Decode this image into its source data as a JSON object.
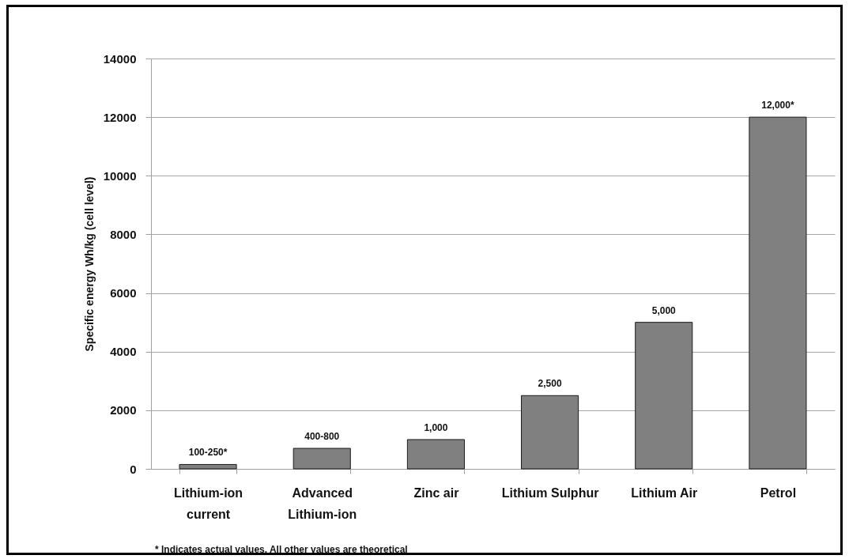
{
  "chart_data": {
    "type": "bar",
    "categories": [
      "Lithium-ion current",
      "Advanced Lithium-ion",
      "Zinc air",
      "Lithium Sulphur",
      "Lithium Air",
      "Petrol"
    ],
    "values": [
      150,
      700,
      1000,
      2500,
      5000,
      12000
    ],
    "color": "#808080",
    "value_labels": [
      "100-250*",
      "400-800",
      "1,000",
      "2,500",
      "5,000",
      "12,000*"
    ],
    "ylabel": "Specific energy Wh/kg (cell level)",
    "ylim": [
      0,
      14000
    ],
    "yticks": [
      0,
      2000,
      4000,
      6000,
      8000,
      10000,
      12000,
      14000
    ],
    "grid": "y",
    "annotations": [
      "* Indicates actual values. All other values are theoretical"
    ]
  }
}
